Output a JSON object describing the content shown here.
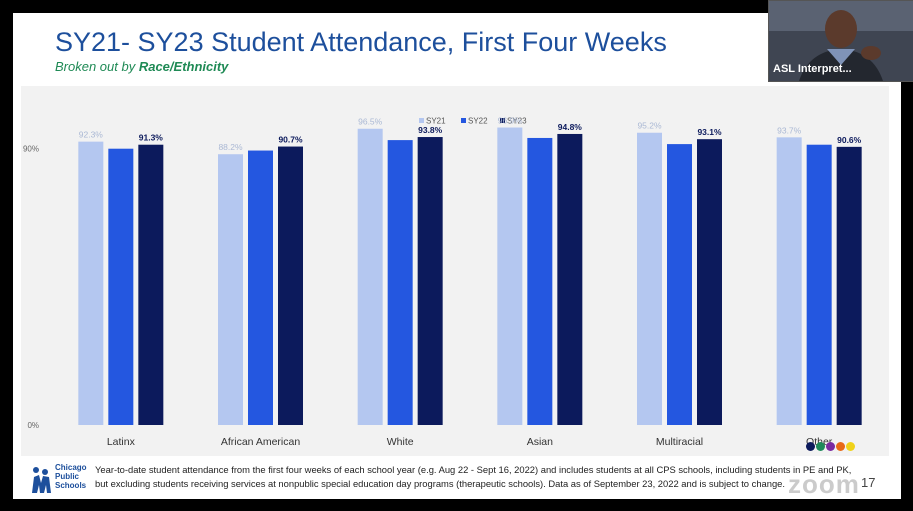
{
  "slide": {
    "title": "SY21- SY23 Student Attendance, First Four Weeks",
    "subtitle_prefix": "Broken out by ",
    "subtitle_bold": "Race/Ethnicity",
    "footnote": "Year-to-date student attendance from the first four weeks of each school year (e.g. Aug 22 - Sept 16, 2022) and includes students at all CPS schools, including students in PE and PK, but excluding students receiving services at nonpublic special education day programs (therapeutic schools). Data as of September 23, 2022 and is subject to change.",
    "page_number": "17",
    "logo_text": "Chicago Public Schools",
    "watermark": "zoom"
  },
  "video": {
    "label": "ASL Interpret..."
  },
  "colors": {
    "sy21": "#b4c7f0",
    "sy22": "#2457e0",
    "sy23": "#0c1a5c",
    "title": "#1d4f9c",
    "subtitle": "#1f8a55",
    "dots": [
      "#0c1a5c",
      "#1e8a5a",
      "#7a2aa0",
      "#e86a17",
      "#f0d21a"
    ]
  },
  "chart_data": {
    "type": "bar",
    "categories": [
      "Latinx",
      "African American",
      "White",
      "Asian",
      "Multiracial",
      "Other"
    ],
    "series": [
      {
        "name": "SY21",
        "values": [
          92.3,
          88.2,
          96.5,
          96.9,
          95.2,
          93.7
        ]
      },
      {
        "name": "SY22",
        "values": [
          90.0,
          89.4,
          92.8,
          93.5,
          91.5,
          91.3
        ]
      },
      {
        "name": "SY23",
        "values": [
          91.3,
          90.7,
          93.8,
          94.8,
          93.1,
          90.6
        ]
      }
    ],
    "labeled_series": [
      "SY21",
      "SY23"
    ],
    "data_labels": {
      "SY21": [
        "92.3%",
        "88.2%",
        "96.5%",
        "96.9%",
        "95.2%",
        "93.7%"
      ],
      "SY23": [
        "91.3%",
        "90.7%",
        "93.8%",
        "94.8%",
        "93.1%",
        "90.6%"
      ]
    },
    "y_ticks": [
      {
        "value": 0,
        "label": "0%"
      },
      {
        "value": 90,
        "label": "90%"
      }
    ],
    "ylim": [
      0,
      100
    ],
    "legend_position": "top-center",
    "grid": false,
    "title": "",
    "xlabel": "",
    "ylabel": ""
  }
}
